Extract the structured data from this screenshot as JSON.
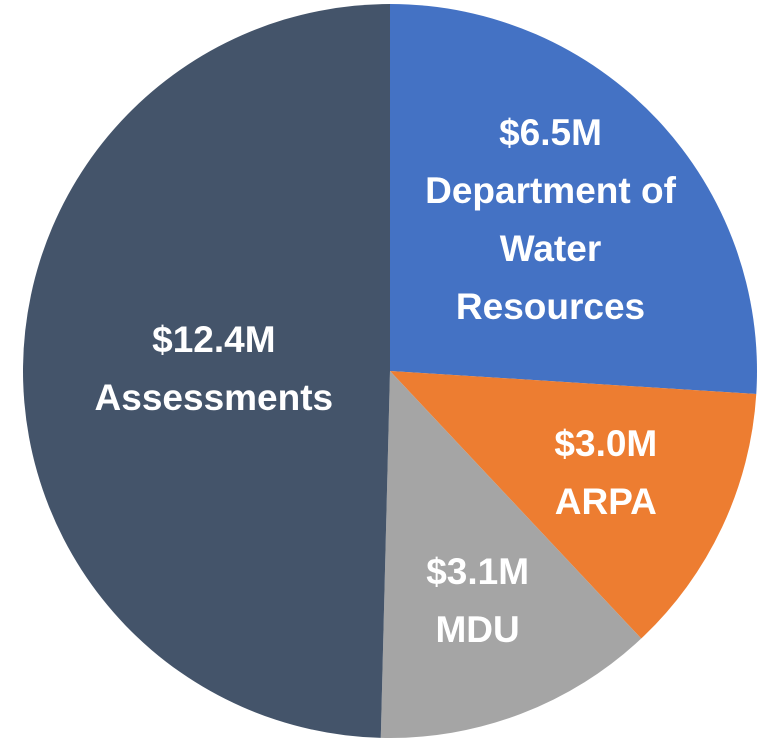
{
  "chart_data": {
    "type": "pie",
    "categories": [
      "Department of Water Resources",
      "ARPA",
      "MDU",
      "Assessments"
    ],
    "values": [
      6.5,
      3.0,
      3.1,
      12.4
    ],
    "value_labels": [
      "$6.5M",
      "$3.0M",
      "$3.1M",
      "$12.4M"
    ],
    "colors": [
      "#4472c4",
      "#ed7d31",
      "#a5a5a5",
      "#44546a"
    ]
  }
}
